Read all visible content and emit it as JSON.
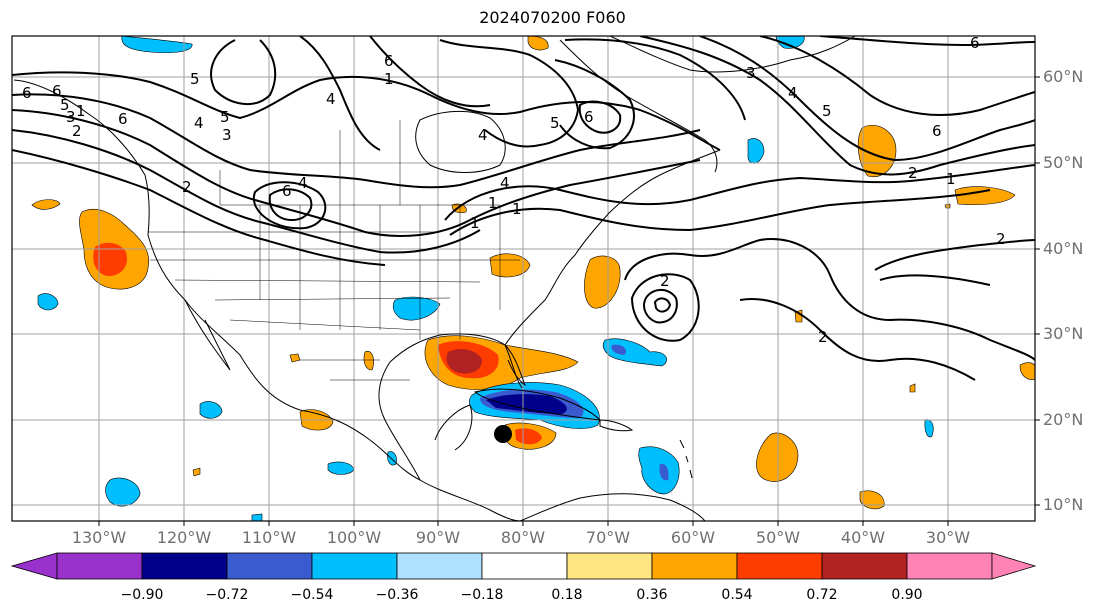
{
  "title": "2024070200 F060",
  "latitude_labels": [
    "60°N",
    "50°N",
    "40°N",
    "30°N",
    "20°N",
    "10°N"
  ],
  "longitude_labels": [
    "130°W",
    "120°W",
    "110°W",
    "100°W",
    "90°W",
    "80°W",
    "70°W",
    "60°W",
    "50°W",
    "40°W",
    "30°W"
  ],
  "colorbar": {
    "tick_labels": [
      "−0.90",
      "−0.72",
      "−0.54",
      "−0.36",
      "−0.18",
      "0.18",
      "0.36",
      "0.54",
      "0.72",
      "0.90"
    ],
    "colors": [
      "#9932cc",
      "#00008b",
      "#3a5bd0",
      "#00bfff",
      "#aee0ff",
      "#ffffff",
      "#ffe680",
      "#ffa500",
      "#ff3c00",
      "#b22222",
      "#ff82b4"
    ]
  },
  "contour_labels": [
    "6",
    "6",
    "5",
    "5",
    "6",
    "4",
    "4",
    "4",
    "3",
    "2",
    "1",
    "1",
    "5",
    "6",
    "6",
    "2",
    "1",
    "2",
    "2",
    "2",
    "3",
    "4",
    "5",
    "6",
    "6",
    "4",
    "4",
    "1",
    "2",
    "3",
    "5",
    "6",
    "1",
    "1"
  ],
  "markers": [
    {
      "type": "filled-circle",
      "color": "#000000"
    }
  ]
}
